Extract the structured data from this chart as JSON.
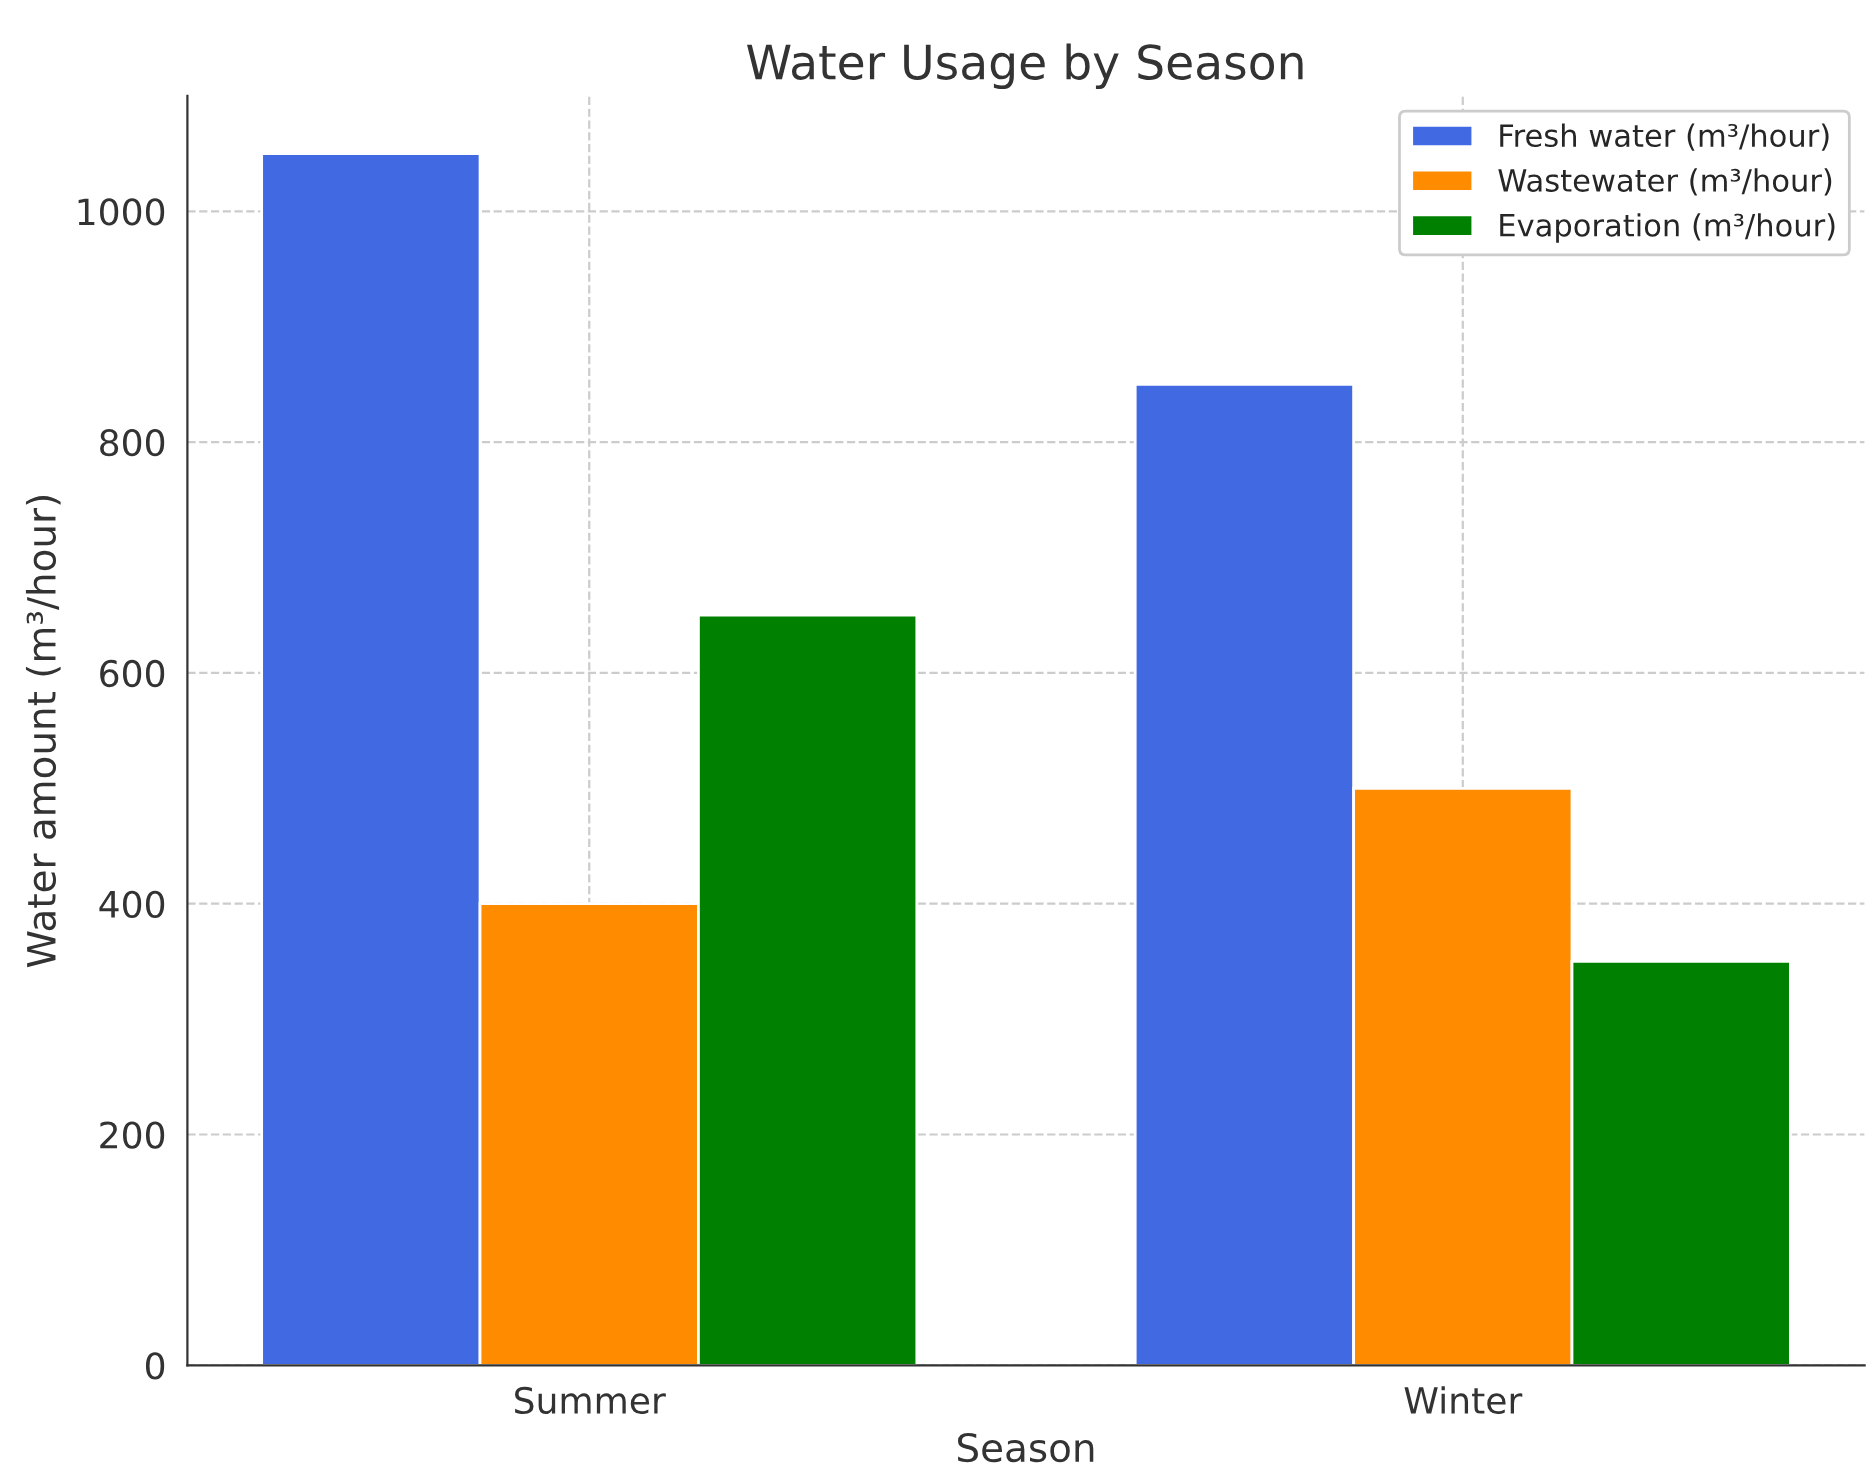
{
  "chart_data": {
    "type": "bar",
    "title": "Water Usage by Season",
    "xlabel": "Season",
    "ylabel": "Water amount (m³/hour)",
    "categories": [
      "Summer",
      "Winter"
    ],
    "series": [
      {
        "name": "Fresh water (m³/hour)",
        "color": "#4169e1",
        "values": [
          1050,
          850
        ]
      },
      {
        "name": "Wastewater (m³/hour)",
        "color": "#ff8c00",
        "values": [
          400,
          500
        ]
      },
      {
        "name": "Evaporation (m³/hour)",
        "color": "#008000",
        "values": [
          650,
          350
        ]
      }
    ],
    "ylim": [
      0,
      1100
    ],
    "yticks": [
      0,
      200,
      400,
      600,
      800,
      1000
    ],
    "grid": true,
    "legend": "top right"
  }
}
